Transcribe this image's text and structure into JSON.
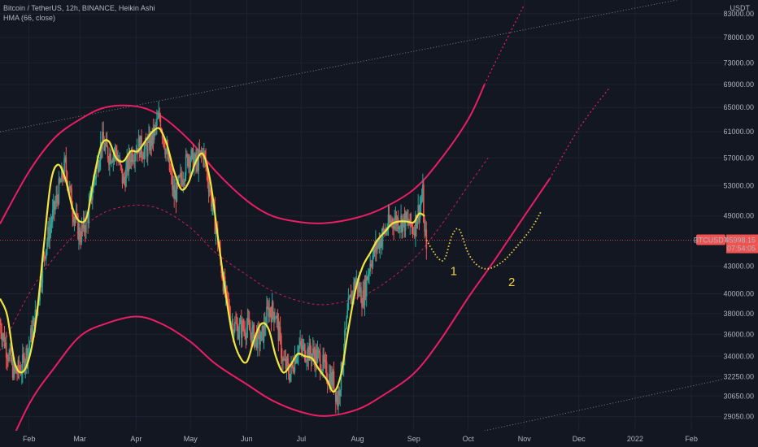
{
  "header": {
    "symbol_line": "Bitcoin / TetherUS, 12h, BINANCE, Heikin Ashi",
    "indicator_line": "HMA (66, close)"
  },
  "currency_label": "USDT",
  "price_badge": {
    "price": "45998.15",
    "countdown": "07:54:05",
    "symbol": "BTCUSDT"
  },
  "colors": {
    "background": "#131722",
    "up_candle": "#26a69a",
    "down_candle": "#ef5350",
    "hma": "#f2e53c",
    "channel": "#e91e63",
    "trendline": "#9598a1",
    "projection": "#f2d53c",
    "price_line": "#ef5350"
  },
  "chart_data": {
    "type": "candlestick",
    "y_axis": {
      "scale": "log",
      "ylim": [
        28000,
        86000
      ],
      "ticks": [
        "83000.00",
        "78000.00",
        "73000.00",
        "69000.00",
        "65000.00",
        "61000.00",
        "57000.00",
        "53000.00",
        "49000.00",
        "43000.00",
        "40000.00",
        "38000.00",
        "36000.00",
        "34000.00",
        "32250.00",
        "30650.00",
        "29050.00"
      ]
    },
    "x_axis": {
      "xlim": [
        "2021-01-16",
        "2022-02-18"
      ],
      "ticks": [
        {
          "label": "Feb",
          "date": "2021-02-01"
        },
        {
          "label": "Mar",
          "date": "2021-03-01"
        },
        {
          "label": "Apr",
          "date": "2021-04-01"
        },
        {
          "label": "May",
          "date": "2021-05-01"
        },
        {
          "label": "Jun",
          "date": "2021-06-01"
        },
        {
          "label": "Jul",
          "date": "2021-07-01"
        },
        {
          "label": "Aug",
          "date": "2021-08-01"
        },
        {
          "label": "Sep",
          "date": "2021-09-01"
        },
        {
          "label": "Oct",
          "date": "2021-10-01"
        },
        {
          "label": "Nov",
          "date": "2021-11-01"
        },
        {
          "label": "Dec",
          "date": "2021-12-01"
        },
        {
          "label": "2022",
          "date": "2022-01-01"
        },
        {
          "label": "Feb",
          "date": "2022-02-01"
        }
      ]
    },
    "close_path": [
      [
        "2021-01-16",
        37000
      ],
      [
        "2021-01-20",
        34500
      ],
      [
        "2021-01-24",
        32500
      ],
      [
        "2021-01-28",
        33000
      ],
      [
        "2021-02-01",
        35000
      ],
      [
        "2021-02-05",
        38000
      ],
      [
        "2021-02-09",
        44000
      ],
      [
        "2021-02-13",
        48000
      ],
      [
        "2021-02-17",
        52000
      ],
      [
        "2021-02-21",
        56000
      ],
      [
        "2021-02-25",
        50000
      ],
      [
        "2021-03-01",
        46500
      ],
      [
        "2021-03-05",
        48500
      ],
      [
        "2021-03-09",
        54000
      ],
      [
        "2021-03-13",
        59500
      ],
      [
        "2021-03-17",
        57500
      ],
      [
        "2021-03-21",
        58000
      ],
      [
        "2021-03-25",
        53500
      ],
      [
        "2021-03-29",
        57500
      ],
      [
        "2021-04-02",
        59000
      ],
      [
        "2021-04-06",
        58000
      ],
      [
        "2021-04-10",
        60000
      ],
      [
        "2021-04-14",
        63500
      ],
      [
        "2021-04-18",
        57500
      ],
      [
        "2021-04-22",
        51500
      ],
      [
        "2021-04-26",
        54000
      ],
      [
        "2021-04-30",
        57500
      ],
      [
        "2021-05-04",
        56000
      ],
      [
        "2021-05-08",
        58000
      ],
      [
        "2021-05-12",
        52000
      ],
      [
        "2021-05-16",
        46000
      ],
      [
        "2021-05-20",
        40000
      ],
      [
        "2021-05-24",
        37000
      ],
      [
        "2021-05-28",
        36500
      ],
      [
        "2021-06-01",
        36700
      ],
      [
        "2021-06-05",
        35800
      ],
      [
        "2021-06-09",
        35500
      ],
      [
        "2021-06-13",
        38500
      ],
      [
        "2021-06-17",
        38000
      ],
      [
        "2021-06-21",
        33500
      ],
      [
        "2021-06-25",
        32500
      ],
      [
        "2021-06-29",
        34800
      ],
      [
        "2021-07-03",
        34500
      ],
      [
        "2021-07-07",
        34200
      ],
      [
        "2021-07-11",
        33800
      ],
      [
        "2021-07-15",
        32500
      ],
      [
        "2021-07-19",
        31800
      ],
      [
        "2021-07-21",
        30300
      ],
      [
        "2021-07-23",
        32500
      ],
      [
        "2021-07-27",
        38500
      ],
      [
        "2021-07-31",
        41500
      ],
      [
        "2021-08-04",
        39500
      ],
      [
        "2021-08-08",
        43500
      ],
      [
        "2021-08-12",
        45500
      ],
      [
        "2021-08-16",
        47000
      ],
      [
        "2021-08-20",
        48500
      ],
      [
        "2021-08-24",
        48500
      ],
      [
        "2021-08-28",
        48200
      ],
      [
        "2021-09-01",
        47500
      ],
      [
        "2021-09-04",
        50000
      ],
      [
        "2021-09-06",
        51800
      ],
      [
        "2021-09-07",
        46500
      ],
      [
        "2021-09-08",
        45998
      ]
    ],
    "hma_66_close": [
      [
        "2021-01-16",
        39500
      ],
      [
        "2021-01-20",
        37800
      ],
      [
        "2021-01-24",
        33500
      ],
      [
        "2021-01-28",
        32600
      ],
      [
        "2021-02-01",
        33800
      ],
      [
        "2021-02-05",
        37500
      ],
      [
        "2021-02-09",
        45000
      ],
      [
        "2021-02-13",
        53500
      ],
      [
        "2021-02-17",
        56000
      ],
      [
        "2021-02-21",
        54000
      ],
      [
        "2021-02-25",
        50000
      ],
      [
        "2021-03-01",
        48300
      ],
      [
        "2021-03-05",
        49000
      ],
      [
        "2021-03-09",
        54500
      ],
      [
        "2021-03-13",
        59000
      ],
      [
        "2021-03-17",
        59500
      ],
      [
        "2021-03-21",
        57000
      ],
      [
        "2021-03-25",
        56500
      ],
      [
        "2021-03-29",
        58000
      ],
      [
        "2021-04-02",
        58000
      ],
      [
        "2021-04-06",
        59500
      ],
      [
        "2021-04-10",
        61000
      ],
      [
        "2021-04-14",
        61500
      ],
      [
        "2021-04-18",
        59000
      ],
      [
        "2021-04-22",
        55000
      ],
      [
        "2021-04-26",
        52500
      ],
      [
        "2021-04-30",
        53500
      ],
      [
        "2021-05-04",
        56500
      ],
      [
        "2021-05-08",
        57500
      ],
      [
        "2021-05-12",
        53500
      ],
      [
        "2021-05-16",
        46500
      ],
      [
        "2021-05-20",
        40500
      ],
      [
        "2021-05-24",
        36000
      ],
      [
        "2021-05-28",
        34000
      ],
      [
        "2021-06-01",
        33500
      ],
      [
        "2021-06-05",
        35500
      ],
      [
        "2021-06-09",
        37000
      ],
      [
        "2021-06-13",
        36500
      ],
      [
        "2021-06-17",
        34000
      ],
      [
        "2021-06-21",
        32600
      ],
      [
        "2021-06-25",
        33200
      ],
      [
        "2021-06-29",
        34200
      ],
      [
        "2021-07-03",
        34000
      ],
      [
        "2021-07-07",
        33800
      ],
      [
        "2021-07-11",
        32800
      ],
      [
        "2021-07-15",
        32000
      ],
      [
        "2021-07-19",
        31000
      ],
      [
        "2021-07-23",
        32500
      ],
      [
        "2021-07-27",
        36500
      ],
      [
        "2021-07-31",
        40500
      ],
      [
        "2021-08-04",
        43000
      ],
      [
        "2021-08-08",
        44500
      ],
      [
        "2021-08-12",
        46000
      ],
      [
        "2021-08-16",
        47000
      ],
      [
        "2021-08-20",
        48000
      ],
      [
        "2021-08-24",
        48300
      ],
      [
        "2021-08-28",
        48300
      ],
      [
        "2021-09-01",
        48200
      ],
      [
        "2021-09-04",
        49300
      ],
      [
        "2021-09-07",
        49000
      ]
    ],
    "channel_upper": [
      [
        "2021-01-16",
        48000
      ],
      [
        "2021-02-01",
        55000
      ],
      [
        "2021-02-15",
        60000
      ],
      [
        "2021-03-01",
        63000
      ],
      [
        "2021-03-15",
        65000
      ],
      [
        "2021-04-01",
        65200
      ],
      [
        "2021-04-15",
        63500
      ],
      [
        "2021-05-01",
        59500
      ],
      [
        "2021-05-15",
        55000
      ],
      [
        "2021-06-01",
        51000
      ],
      [
        "2021-06-15",
        49000
      ],
      [
        "2021-07-01",
        48200
      ],
      [
        "2021-07-15",
        48100
      ],
      [
        "2021-08-01",
        48800
      ],
      [
        "2021-08-15",
        50000
      ],
      [
        "2021-09-01",
        52500
      ],
      [
        "2021-09-15",
        56500
      ],
      [
        "2021-10-01",
        63000
      ],
      [
        "2021-10-10",
        69000
      ]
    ],
    "channel_lower": [
      [
        "2021-01-16",
        25500
      ],
      [
        "2021-02-01",
        30000
      ],
      [
        "2021-02-15",
        33000
      ],
      [
        "2021-03-01",
        35800
      ],
      [
        "2021-03-15",
        37000
      ],
      [
        "2021-04-01",
        37700
      ],
      [
        "2021-04-15",
        37000
      ],
      [
        "2021-05-01",
        35300
      ],
      [
        "2021-05-15",
        33300
      ],
      [
        "2021-06-01",
        31600
      ],
      [
        "2021-06-15",
        30300
      ],
      [
        "2021-07-01",
        29400
      ],
      [
        "2021-07-15",
        29100
      ],
      [
        "2021-08-01",
        29600
      ],
      [
        "2021-08-15",
        30700
      ],
      [
        "2021-09-01",
        32500
      ],
      [
        "2021-09-15",
        35300
      ],
      [
        "2021-10-01",
        39600
      ],
      [
        "2021-10-15",
        43500
      ],
      [
        "2021-11-01",
        49000
      ],
      [
        "2021-11-15",
        54000
      ]
    ],
    "channel_mid": [
      [
        "2021-01-16",
        34500
      ],
      [
        "2021-02-01",
        40000
      ],
      [
        "2021-02-15",
        44000
      ],
      [
        "2021-03-01",
        47200
      ],
      [
        "2021-03-15",
        49500
      ],
      [
        "2021-04-01",
        50400
      ],
      [
        "2021-04-15",
        49800
      ],
      [
        "2021-05-01",
        47500
      ],
      [
        "2021-05-15",
        44500
      ],
      [
        "2021-06-01",
        42000
      ],
      [
        "2021-06-15",
        40300
      ],
      [
        "2021-07-01",
        39200
      ],
      [
        "2021-07-15",
        38900
      ],
      [
        "2021-08-01",
        39600
      ],
      [
        "2021-08-15",
        41000
      ],
      [
        "2021-09-01",
        43800
      ],
      [
        "2021-09-15",
        47500
      ],
      [
        "2021-10-01",
        53000
      ],
      [
        "2021-10-12",
        57000
      ]
    ],
    "upper_extension": [
      [
        "2021-10-10",
        69000
      ],
      [
        "2021-10-20",
        76000
      ],
      [
        "2021-11-01",
        85000
      ]
    ],
    "lower_extension": [
      [
        "2021-11-15",
        54000
      ],
      [
        "2021-12-01",
        61500
      ],
      [
        "2021-12-18",
        68500
      ]
    ],
    "trendline_top": [
      [
        "2021-01-16",
        61000
      ],
      [
        "2022-02-18",
        88000
      ]
    ],
    "trendline_bottom": [
      [
        "2021-10-10",
        28000
      ],
      [
        "2022-02-18",
        32000
      ]
    ],
    "projection": [
      [
        "2021-09-08",
        46000
      ],
      [
        "2021-09-14",
        44000
      ],
      [
        "2021-09-18",
        43800
      ],
      [
        "2021-09-22",
        46500
      ],
      [
        "2021-09-26",
        47300
      ],
      [
        "2021-10-01",
        44500
      ],
      [
        "2021-10-06",
        43100
      ],
      [
        "2021-10-12",
        42700
      ],
      [
        "2021-10-20",
        43500
      ],
      [
        "2021-10-28",
        45300
      ],
      [
        "2021-11-05",
        47500
      ],
      [
        "2021-11-10",
        49500
      ]
    ],
    "annotations": [
      {
        "text": "1",
        "date": "2021-09-23",
        "price": 42000
      },
      {
        "text": "2",
        "date": "2021-10-25",
        "price": 40800
      }
    ],
    "last_price": 45998.15
  }
}
